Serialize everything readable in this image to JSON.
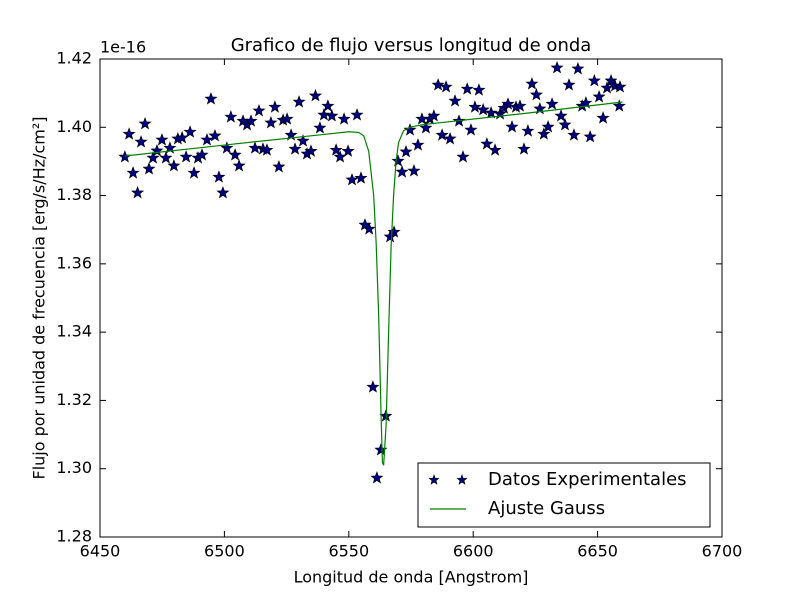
{
  "chart_data": {
    "type": "line",
    "title": "Grafico de flujo versus longitud de onda",
    "x_label": "Longitud de onda [Angstrom]",
    "y_label": "Flujo por unidad de frecuencia [erg/s/Hz/cm²]",
    "y_offset_label": "1e-16",
    "xlim": [
      6450,
      6700
    ],
    "xticks": [
      6450,
      6500,
      6550,
      6600,
      6650,
      6700
    ],
    "ylim": [
      1.28,
      1.42
    ],
    "yticks": [
      1.28,
      {
        "value": 1.3,
        "label": "1.30"
      },
      1.32,
      1.34,
      1.36,
      1.38,
      {
        "value": 1.4,
        "label": "1.40"
      },
      1.42
    ],
    "grid": false,
    "legend": "lower right",
    "series": [
      {
        "name": "Datos Experimentales",
        "type": "scatter",
        "marker": "star",
        "color": "#000080",
        "x": [
          6460.0,
          6461.7,
          6463.3,
          6465.1,
          6466.5,
          6468.1,
          6469.7,
          6471.3,
          6472.9,
          6474.9,
          6476.5,
          6478.1,
          6479.7,
          6481.3,
          6483.0,
          6484.6,
          6486.2,
          6487.8,
          6489.4,
          6491.0,
          6493.0,
          6494.6,
          6496.2,
          6497.8,
          6499.4,
          6501.0,
          6502.6,
          6504.3,
          6505.9,
          6507.5,
          6509.1,
          6510.7,
          6512.3,
          6513.9,
          6515.5,
          6517.1,
          6518.7,
          6520.3,
          6521.9,
          6523.6,
          6525.2,
          6526.8,
          6528.4,
          6530.0,
          6531.6,
          6533.2,
          6534.8,
          6536.6,
          6538.4,
          6540.0,
          6541.6,
          6543.2,
          6544.9,
          6546.5,
          6548.1,
          6549.7,
          6551.3,
          6553.3,
          6554.9,
          6556.5,
          6558.2,
          6559.7,
          6561.3,
          6562.9,
          6564.9,
          6566.6,
          6568.2,
          6569.8,
          6571.4,
          6573.0,
          6574.6,
          6576.2,
          6577.8,
          6579.4,
          6581.0,
          6582.6,
          6584.2,
          6585.9,
          6587.5,
          6589.1,
          6590.7,
          6592.7,
          6594.3,
          6595.9,
          6597.6,
          6599.1,
          6600.7,
          6602.3,
          6604.0,
          6605.5,
          6607.2,
          6608.8,
          6610.8,
          6612.4,
          6614.0,
          6615.6,
          6617.2,
          6618.8,
          6620.4,
          6622.0,
          6623.6,
          6625.4,
          6626.8,
          6628.4,
          6630.1,
          6631.7,
          6633.7,
          6635.3,
          6636.9,
          6638.5,
          6640.5,
          6642.1,
          6643.8,
          6645.3,
          6647.0,
          6648.7,
          6650.6,
          6652.2,
          6653.8,
          6655.4,
          6657.0,
          6658.7,
          6659.0
        ],
        "values": [
          1.3913,
          1.398,
          1.3866,
          1.3808,
          1.3957,
          1.401,
          1.3878,
          1.391,
          1.3931,
          1.3963,
          1.391,
          1.3939,
          1.3887,
          1.3966,
          1.3969,
          1.3913,
          1.3986,
          1.3866,
          1.391,
          1.3919,
          1.3963,
          1.4083,
          1.3975,
          1.3854,
          1.3808,
          1.3939,
          1.403,
          1.3919,
          1.3887,
          1.4018,
          1.4007,
          1.4018,
          1.3939,
          1.4048,
          1.3936,
          1.3933,
          1.4013,
          1.4059,
          1.3884,
          1.4021,
          1.4024,
          1.3977,
          1.3936,
          1.4074,
          1.396,
          1.3922,
          1.393,
          1.4092,
          1.3998,
          1.4036,
          1.4062,
          1.4033,
          1.3933,
          1.3913,
          1.4024,
          1.393,
          1.3846,
          1.4036,
          1.3851,
          1.3714,
          1.3702,
          1.3239,
          1.2973,
          1.3055,
          1.3154,
          1.3679,
          1.3693,
          1.3901,
          1.3869,
          1.3928,
          1.3992,
          1.3872,
          1.3948,
          1.4024,
          1.3998,
          1.4024,
          1.4033,
          1.4124,
          1.3977,
          1.4118,
          1.3966,
          1.4077,
          1.4018,
          1.3913,
          1.4112,
          1.3992,
          1.4059,
          1.4109,
          1.4051,
          1.3951,
          1.4042,
          1.3933,
          1.4039,
          1.4056,
          1.4068,
          1.4001,
          1.4059,
          1.4062,
          1.3936,
          1.3989,
          1.4127,
          1.4095,
          1.4054,
          1.398,
          1.4001,
          1.4068,
          1.4174,
          1.4033,
          1.4007,
          1.4124,
          1.3977,
          1.4171,
          1.4062,
          1.4071,
          1.3972,
          1.4136,
          1.4089,
          1.4027,
          1.4115,
          1.4136,
          1.4121,
          1.4062,
          1.4118
        ]
      },
      {
        "name": "Ajuste Gauss",
        "type": "line",
        "color": "#008000",
        "x": [
          6460,
          6500,
          6540,
          6550,
          6554,
          6556,
          6558,
          6560,
          6561,
          6562,
          6563,
          6563.5,
          6564,
          6565,
          6566,
          6567,
          6568,
          6569,
          6570,
          6572,
          6575,
          6580,
          6620,
          6660
        ],
        "values": [
          1.3916,
          1.3948,
          1.3979,
          1.3987,
          1.3985,
          1.3975,
          1.393,
          1.38,
          1.366,
          1.345,
          1.315,
          1.302,
          1.301,
          1.313,
          1.34,
          1.365,
          1.38,
          1.39,
          1.3955,
          1.399,
          1.4001,
          1.4008,
          1.404,
          1.4074
        ]
      }
    ]
  }
}
